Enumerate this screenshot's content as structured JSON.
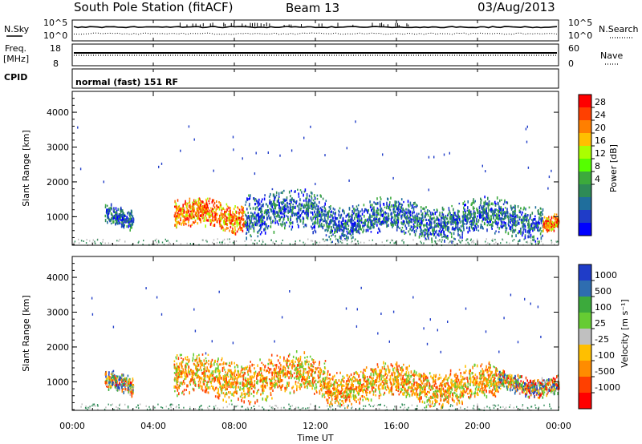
{
  "header": {
    "station": "South Pole Station (fitACF)",
    "beam": "Beam 13",
    "date": "03/Aug/2013"
  },
  "top_panels": {
    "nsky_label": "N.Sky",
    "nsky_ticks": [
      "10^5",
      "10^0"
    ],
    "nsearch_label": "N.Search",
    "nsearch_ticks": [
      "10^5",
      "10^0"
    ],
    "freq_label": "Freq.",
    "freq_unit": "[MHz]",
    "freq_ticks": [
      "18",
      "8"
    ],
    "nave_label": "Nave",
    "nave_ticks": [
      "60",
      "0"
    ],
    "cpid_label": "CPID",
    "cpid_value": "normal (fast) 151 RF"
  },
  "chart_data": [
    {
      "type": "heatmap",
      "name": "power",
      "ylabel": "Slant Range [km]",
      "yticks": [
        1000,
        2000,
        3000,
        4000
      ],
      "ylim": [
        180,
        4600
      ],
      "xlim_hours": [
        0,
        24
      ],
      "colorbar": {
        "label": "Power [dB]",
        "ticks": [
          "28",
          "24",
          "20",
          "16",
          "12",
          "8",
          "4"
        ],
        "colors": [
          "#ff0000",
          "#ff4000",
          "#ff7f00",
          "#ffbf00",
          "#aaff00",
          "#55ff00",
          "#3caa3c",
          "#2e8b57",
          "#1f6e9c",
          "#1f3cc8",
          "#0000ff"
        ]
      },
      "echo_summary": [
        {
          "t_start": 1.6,
          "t_end": 3.0,
          "r_min": 700,
          "r_max": 1300,
          "level": "4-8 dB"
        },
        {
          "t_start": 5.0,
          "t_end": 8.5,
          "r_min": 600,
          "r_max": 1500,
          "level": "16-28 dB"
        },
        {
          "t_start": 8.5,
          "t_end": 12.5,
          "r_min": 500,
          "r_max": 1800,
          "level": "4-12 dB"
        },
        {
          "t_start": 12.5,
          "t_end": 23.2,
          "r_min": 400,
          "r_max": 1500,
          "level": "4-12 dB"
        },
        {
          "t_start": 23.2,
          "t_end": 24.0,
          "r_min": 700,
          "r_max": 1200,
          "level": "16-28 dB"
        }
      ]
    },
    {
      "type": "heatmap",
      "name": "velocity",
      "ylabel": "Slant Range [km]",
      "xlabel": "Time UT",
      "yticks": [
        1000,
        2000,
        3000,
        4000
      ],
      "ylim": [
        180,
        4600
      ],
      "xticks": [
        "00:00",
        "04:00",
        "08:00",
        "12:00",
        "16:00",
        "20:00",
        "00:00"
      ],
      "xlim_hours": [
        0,
        24
      ],
      "colorbar": {
        "label": "Velocity [m s⁻¹]",
        "ticks": [
          "1000",
          "500",
          "100",
          "25",
          "-25",
          "-100",
          "-500",
          "-1000"
        ],
        "colors": [
          "#1f3cc8",
          "#2e6db0",
          "#3caa3c",
          "#66cc33",
          "#c0c0c0",
          "#ffbf00",
          "#ff8c00",
          "#ff4000",
          "#ff0000"
        ]
      },
      "echo_summary": [
        {
          "t_start": 1.6,
          "t_end": 3.0,
          "r_min": 700,
          "r_max": 1300,
          "level": "mixed"
        },
        {
          "t_start": 5.0,
          "t_end": 12.5,
          "r_min": 500,
          "r_max": 1800,
          "level": "-100 to -500 m/s"
        },
        {
          "t_start": 12.5,
          "t_end": 21.0,
          "r_min": 400,
          "r_max": 1500,
          "level": "-100 to -500 m/s"
        },
        {
          "t_start": 21.0,
          "t_end": 24.0,
          "r_min": 700,
          "r_max": 1300,
          "level": "mixed"
        }
      ]
    }
  ]
}
